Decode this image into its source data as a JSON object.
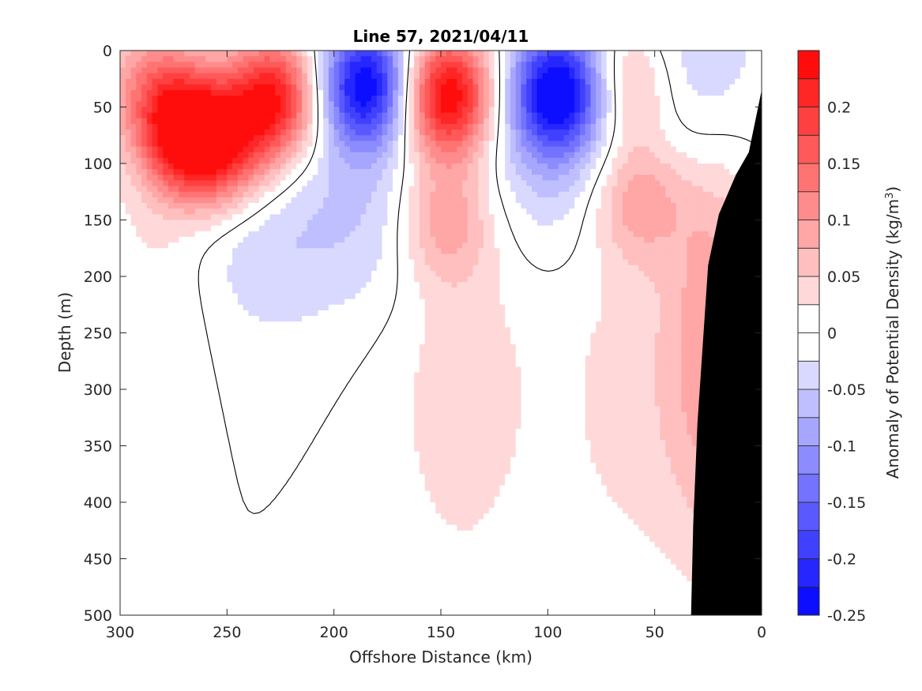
{
  "chart_data": {
    "type": "heatmap",
    "title": "Line 57, 2021/04/11",
    "xlabel": "Offshore Distance (km)",
    "ylabel": "Depth (m)",
    "colorbar_label": "Anomaly of Potential Density (kg/m",
    "colorbar_label_sup": "3",
    "colorbar_label_close": ")",
    "xlim": [
      300,
      0
    ],
    "ylim": [
      500,
      0
    ],
    "x_reversed": true,
    "y_reversed": true,
    "xticks": [
      300,
      250,
      200,
      150,
      100,
      50,
      0
    ],
    "yticks": [
      0,
      50,
      100,
      150,
      200,
      250,
      300,
      350,
      400,
      450,
      500
    ],
    "clim": [
      -0.25,
      0.25
    ],
    "colorbar_ticks": [
      0.2,
      0.15,
      0.1,
      0.05,
      0,
      -0.05,
      -0.1,
      -0.15,
      -0.2,
      -0.25
    ],
    "colorbar_tick_labels": [
      "0.2",
      "0.15",
      "0.1",
      "0.05",
      "0",
      "-0.05",
      "-0.1",
      "-0.15",
      "-0.2",
      "-0.25"
    ],
    "contour_levels": [
      -0.25,
      -0.225,
      -0.2,
      -0.175,
      -0.15,
      -0.125,
      -0.1,
      -0.075,
      -0.05,
      -0.025,
      0,
      0.025,
      0.05,
      0.075,
      0.1,
      0.125,
      0.15,
      0.175,
      0.2,
      0.225,
      0.25
    ],
    "colormap": "blue-white-red",
    "zero_contour_color": "#000000",
    "bathymetry_color": "#000000",
    "features": [
      {
        "kind": "anomaly",
        "x_km": 268,
        "depth_m": 75,
        "value": 0.26
      },
      {
        "kind": "anomaly",
        "x_km": 228,
        "depth_m": 42,
        "value": 0.22
      },
      {
        "kind": "anomaly",
        "x_km": 248,
        "depth_m": 90,
        "value": 0.12
      },
      {
        "kind": "anomaly",
        "x_km": 285,
        "depth_m": 30,
        "value": 0.1
      },
      {
        "kind": "anomaly",
        "x_km": 185,
        "depth_m": 30,
        "value": -0.25
      },
      {
        "kind": "anomaly",
        "x_km": 185,
        "depth_m": 140,
        "value": -0.05
      },
      {
        "kind": "anomaly",
        "x_km": 147,
        "depth_m": 40,
        "value": 0.26
      },
      {
        "kind": "anomaly",
        "x_km": 148,
        "depth_m": 150,
        "value": 0.09
      },
      {
        "kind": "anomaly",
        "x_km": 95,
        "depth_m": 35,
        "value": -0.24
      },
      {
        "kind": "anomaly",
        "x_km": 100,
        "depth_m": 90,
        "value": -0.06
      },
      {
        "kind": "anomaly",
        "x_km": 62,
        "depth_m": 30,
        "value": 0.1
      },
      {
        "kind": "anomaly",
        "x_km": 58,
        "depth_m": 130,
        "value": 0.09
      },
      {
        "kind": "anomaly",
        "x_km": 34,
        "depth_m": 20,
        "value": -0.06
      },
      {
        "kind": "anomaly",
        "x_km": 238,
        "depth_m": 170,
        "value": -0.05
      },
      {
        "kind": "anomaly",
        "x_km": 22,
        "depth_m": 260,
        "value": 0.09
      },
      {
        "kind": "anomaly",
        "x_km": 140,
        "depth_m": 300,
        "value": 0.04
      },
      {
        "kind": "anomaly",
        "x_km": 60,
        "depth_m": 300,
        "value": 0.035
      },
      {
        "kind": "anomaly",
        "x_km": 280,
        "depth_m": 200,
        "value": 0.03
      }
    ],
    "bathymetry_depth_m": [
      {
        "x_km": 0,
        "depth_m": 35
      },
      {
        "x_km": 6,
        "depth_m": 90
      },
      {
        "x_km": 12,
        "depth_m": 110
      },
      {
        "x_km": 20,
        "depth_m": 145
      },
      {
        "x_km": 25,
        "depth_m": 190
      },
      {
        "x_km": 30,
        "depth_m": 330
      },
      {
        "x_km": 32,
        "depth_m": 420
      },
      {
        "x_km": 33,
        "depth_m": 500
      }
    ]
  }
}
